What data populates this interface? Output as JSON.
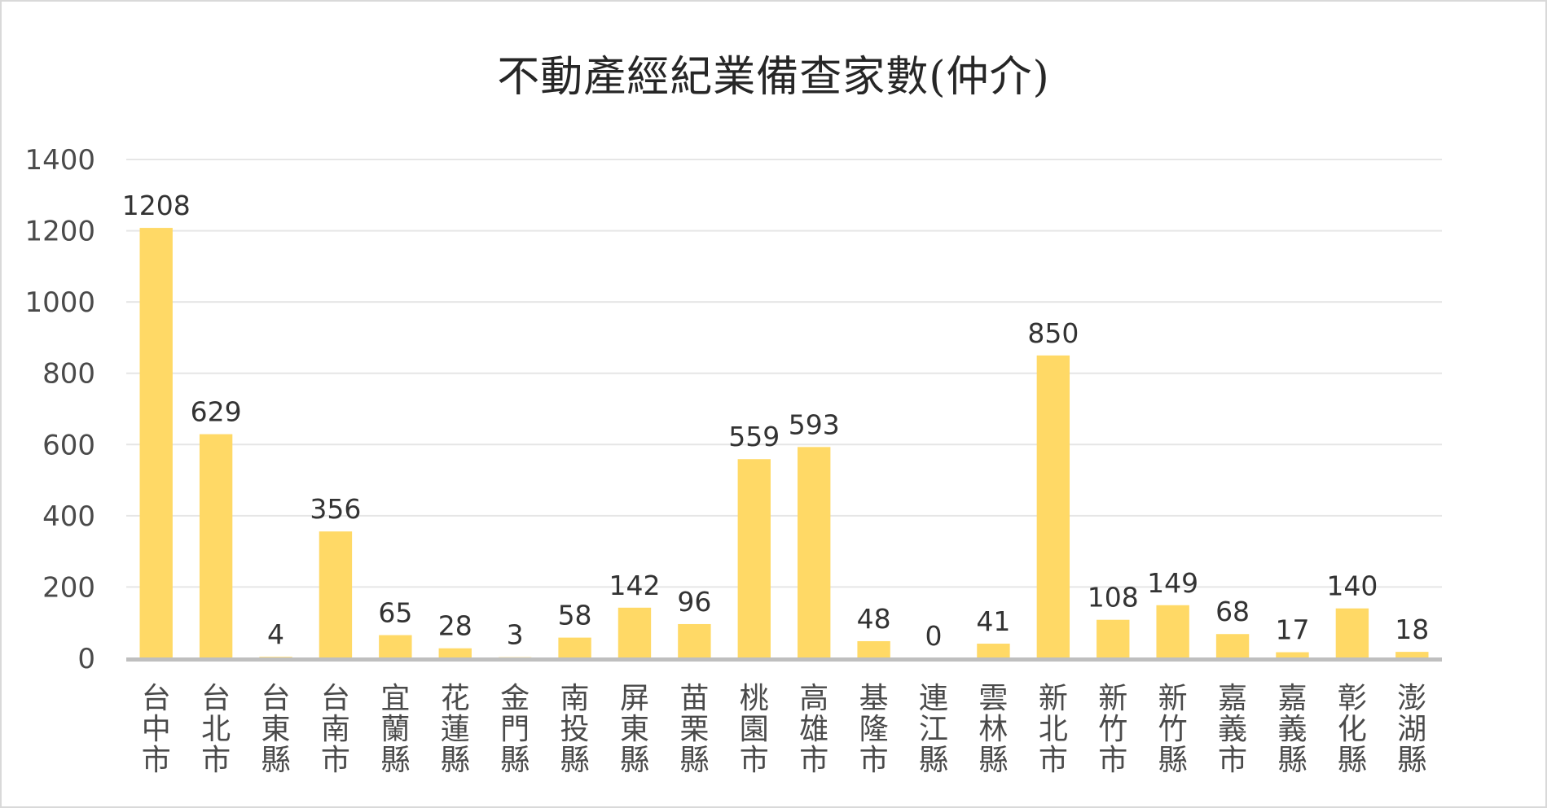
{
  "chart_data": {
    "type": "bar",
    "title": "不動產經紀業備查家數(仲介)",
    "xlabel": "",
    "ylabel": "",
    "categories": [
      "台中市",
      "台北市",
      "台東縣",
      "台南市",
      "宜蘭縣",
      "花蓮縣",
      "金門縣",
      "南投縣",
      "屏東縣",
      "苗栗縣",
      "桃園市",
      "高雄市",
      "基隆市",
      "連江縣",
      "雲林縣",
      "新北市",
      "新竹市",
      "新竹縣",
      "嘉義市",
      "嘉義縣",
      "彰化縣",
      "澎湖縣"
    ],
    "values": [
      1208,
      629,
      4,
      356,
      65,
      28,
      3,
      58,
      142,
      96,
      559,
      593,
      48,
      0,
      41,
      850,
      108,
      149,
      68,
      17,
      140,
      18
    ],
    "ylim": [
      0,
      1400
    ],
    "yticks": [
      0,
      200,
      400,
      600,
      800,
      1000,
      1200,
      1400
    ],
    "grid": true,
    "legend": "none",
    "data_labels": true,
    "colors": {
      "bar": "#FFD966",
      "grid": "#E6E6E6",
      "axis": "#BFBFBF",
      "border": "#D9D9D9"
    }
  }
}
